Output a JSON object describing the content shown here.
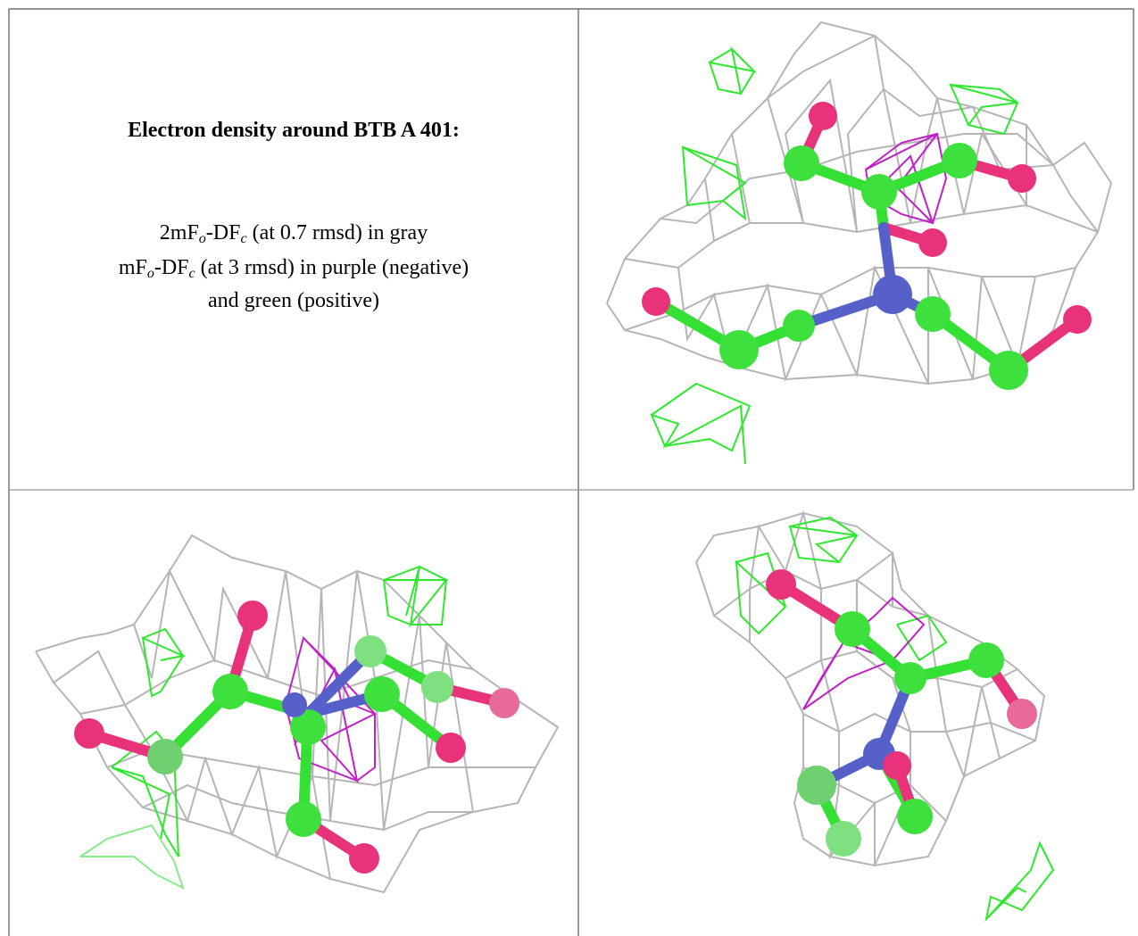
{
  "caption": {
    "title": "Electron density around BTB A 401:",
    "lines": [
      [
        "2mF",
        "o",
        "-DF",
        "c",
        " (at 0.7 rmsd) in gray"
      ],
      [
        "mF",
        "o",
        "-DF",
        "c",
        " (at 3 rmsd) in purple (negative)"
      ],
      [
        "and green (positive)"
      ]
    ]
  }
}
